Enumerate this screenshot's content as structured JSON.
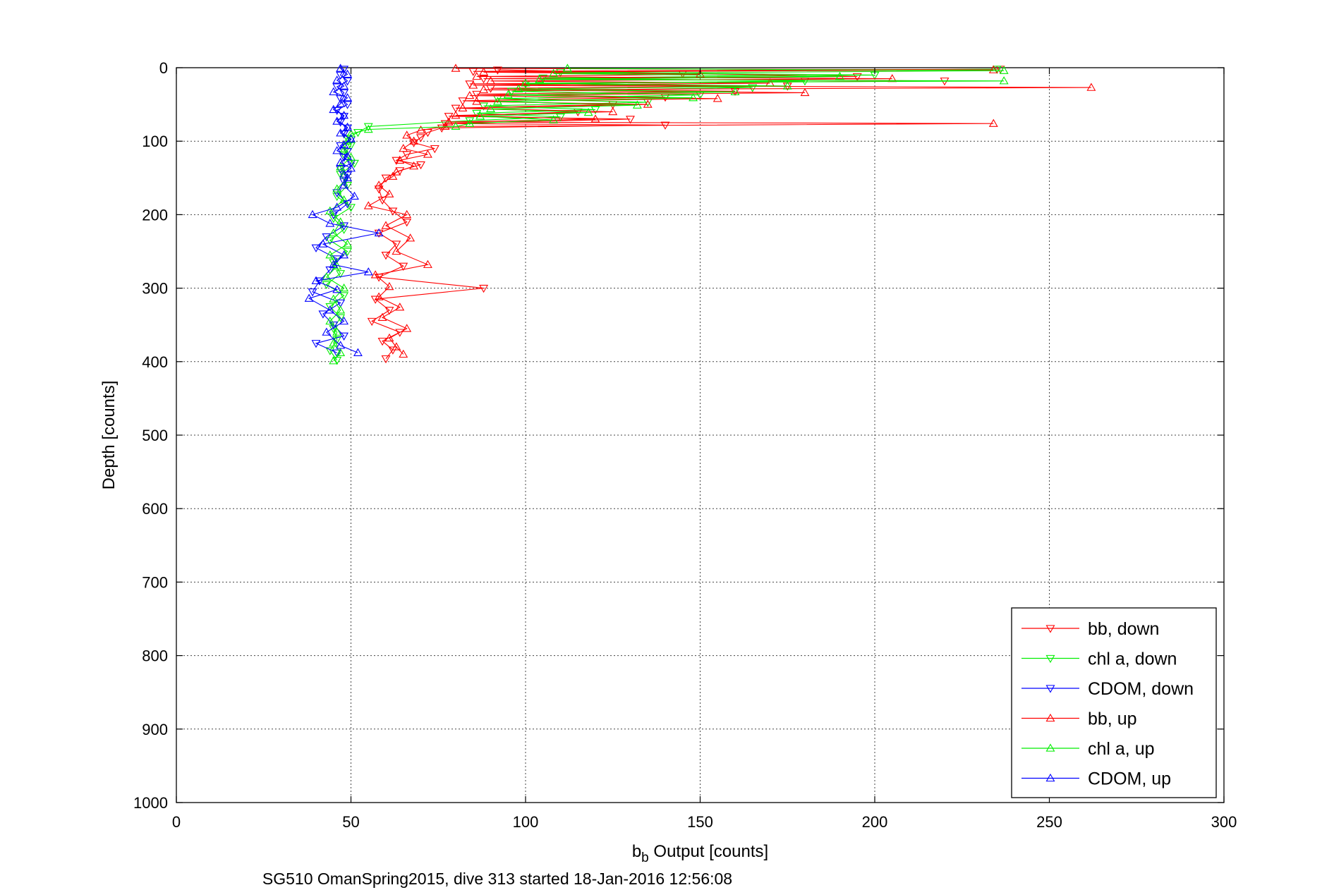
{
  "chart_data": {
    "type": "line",
    "title": "",
    "xlabel_main": "b",
    "xlabel_sub": "b",
    "xlabel_rest": " Output [counts]",
    "ylabel": "Depth [counts]",
    "caption": "SG510 OmanSpring2015, dive 313 started 18-Jan-2016 12:56:08",
    "xlim": [
      0,
      300
    ],
    "ylim": [
      0,
      1000
    ],
    "y_reversed": true,
    "grid": true,
    "xticks": [
      "0",
      "50",
      "100",
      "150",
      "200",
      "250",
      "300"
    ],
    "yticks": [
      "0",
      "100",
      "200",
      "300",
      "400",
      "500",
      "600",
      "700",
      "800",
      "900",
      "1000"
    ],
    "legend_position": "bottom-right",
    "series": [
      {
        "name": "bb, down",
        "color": "#ff0000",
        "marker": "triangle-down",
        "points": [
          [
            236,
            2
          ],
          [
            85,
            5
          ],
          [
            145,
            8
          ],
          [
            92,
            3
          ],
          [
            195,
            12
          ],
          [
            88,
            15
          ],
          [
            220,
            18
          ],
          [
            84,
            22
          ],
          [
            175,
            25
          ],
          [
            90,
            28
          ],
          [
            160,
            32
          ],
          [
            86,
            36
          ],
          [
            140,
            40
          ],
          [
            82,
            45
          ],
          [
            125,
            50
          ],
          [
            80,
            55
          ],
          [
            115,
            60
          ],
          [
            78,
            66
          ],
          [
            130,
            70
          ],
          [
            77,
            76
          ],
          [
            140,
            78
          ],
          [
            76,
            82
          ],
          [
            72,
            88
          ],
          [
            70,
            95
          ],
          [
            68,
            102
          ],
          [
            74,
            110
          ],
          [
            66,
            118
          ],
          [
            63,
            126
          ],
          [
            70,
            132
          ],
          [
            64,
            140
          ],
          [
            60,
            150
          ],
          [
            58,
            165
          ],
          [
            59,
            180
          ],
          [
            62,
            195
          ],
          [
            66,
            210
          ],
          [
            58,
            225
          ],
          [
            63,
            240
          ],
          [
            60,
            255
          ],
          [
            65,
            270
          ],
          [
            58,
            285
          ],
          [
            88,
            300
          ],
          [
            57,
            315
          ],
          [
            61,
            330
          ],
          [
            56,
            345
          ],
          [
            64,
            360
          ],
          [
            59,
            372
          ],
          [
            62,
            384
          ],
          [
            60,
            396
          ]
        ]
      },
      {
        "name": "chl a, down",
        "color": "#00ee00",
        "marker": "triangle-down",
        "points": [
          [
            235,
            2
          ],
          [
            110,
            6
          ],
          [
            200,
            10
          ],
          [
            105,
            14
          ],
          [
            180,
            18
          ],
          [
            100,
            22
          ],
          [
            165,
            27
          ],
          [
            96,
            32
          ],
          [
            150,
            37
          ],
          [
            92,
            42
          ],
          [
            135,
            47
          ],
          [
            88,
            52
          ],
          [
            120,
            57
          ],
          [
            86,
            62
          ],
          [
            110,
            67
          ],
          [
            84,
            72
          ],
          [
            55,
            80
          ],
          [
            52,
            88
          ],
          [
            49,
            96
          ],
          [
            50,
            106
          ],
          [
            48,
            118
          ],
          [
            51,
            130
          ],
          [
            47,
            145
          ],
          [
            49,
            160
          ],
          [
            46,
            175
          ],
          [
            50,
            190
          ],
          [
            45,
            205
          ],
          [
            48,
            220
          ],
          [
            44,
            235
          ],
          [
            49,
            250
          ],
          [
            45,
            265
          ],
          [
            47,
            280
          ],
          [
            43,
            295
          ],
          [
            48,
            310
          ],
          [
            44,
            325
          ],
          [
            47,
            340
          ],
          [
            45,
            355
          ],
          [
            46,
            370
          ],
          [
            44,
            385
          ],
          [
            46,
            398
          ]
        ]
      },
      {
        "name": "CDOM, down",
        "color": "#0000ff",
        "marker": "triangle-down",
        "points": [
          [
            48,
            2
          ],
          [
            47,
            10
          ],
          [
            49,
            18
          ],
          [
            46,
            26
          ],
          [
            48,
            34
          ],
          [
            47,
            42
          ],
          [
            49,
            50
          ],
          [
            46,
            58
          ],
          [
            48,
            66
          ],
          [
            47,
            74
          ],
          [
            49,
            82
          ],
          [
            48,
            90
          ],
          [
            50,
            98
          ],
          [
            47,
            106
          ],
          [
            49,
            114
          ],
          [
            48,
            122
          ],
          [
            50,
            130
          ],
          [
            47,
            138
          ],
          [
            49,
            146
          ],
          [
            48,
            155
          ],
          [
            46,
            170
          ],
          [
            49,
            185
          ],
          [
            45,
            200
          ],
          [
            48,
            215
          ],
          [
            43,
            230
          ],
          [
            40,
            245
          ],
          [
            46,
            260
          ],
          [
            44,
            275
          ],
          [
            41,
            290
          ],
          [
            39,
            305
          ],
          [
            47,
            320
          ],
          [
            42,
            335
          ],
          [
            45,
            350
          ],
          [
            48,
            365
          ],
          [
            40,
            375
          ],
          [
            46,
            388
          ]
        ]
      },
      {
        "name": "bb, up",
        "color": "#ff0000",
        "marker": "triangle-up",
        "points": [
          [
            80,
            1
          ],
          [
            234,
            3
          ],
          [
            88,
            6
          ],
          [
            150,
            9
          ],
          [
            86,
            12
          ],
          [
            205,
            15
          ],
          [
            90,
            18
          ],
          [
            170,
            21
          ],
          [
            85,
            24
          ],
          [
            262,
            27
          ],
          [
            88,
            30
          ],
          [
            180,
            34
          ],
          [
            84,
            38
          ],
          [
            155,
            42
          ],
          [
            86,
            46
          ],
          [
            135,
            50
          ],
          [
            82,
            55
          ],
          [
            125,
            60
          ],
          [
            80,
            65
          ],
          [
            120,
            70
          ],
          [
            78,
            74
          ],
          [
            234,
            76
          ],
          [
            77,
            80
          ],
          [
            70,
            85
          ],
          [
            66,
            92
          ],
          [
            68,
            100
          ],
          [
            65,
            110
          ],
          [
            72,
            118
          ],
          [
            64,
            126
          ],
          [
            68,
            134
          ],
          [
            63,
            142
          ],
          [
            62,
            148
          ],
          [
            58,
            160
          ],
          [
            61,
            172
          ],
          [
            55,
            188
          ],
          [
            66,
            200
          ],
          [
            60,
            215
          ],
          [
            67,
            232
          ],
          [
            63,
            250
          ],
          [
            72,
            268
          ],
          [
            57,
            282
          ],
          [
            61,
            298
          ],
          [
            58,
            312
          ],
          [
            64,
            326
          ],
          [
            59,
            340
          ],
          [
            66,
            355
          ],
          [
            61,
            368
          ],
          [
            63,
            380
          ],
          [
            65,
            390
          ]
        ]
      },
      {
        "name": "chl a, up",
        "color": "#00ee00",
        "marker": "triangle-up",
        "points": [
          [
            112,
            1
          ],
          [
            237,
            4
          ],
          [
            108,
            8
          ],
          [
            190,
            12
          ],
          [
            104,
            16
          ],
          [
            237,
            18
          ],
          [
            100,
            21
          ],
          [
            175,
            25
          ],
          [
            98,
            29
          ],
          [
            160,
            33
          ],
          [
            95,
            37
          ],
          [
            148,
            41
          ],
          [
            92,
            46
          ],
          [
            132,
            51
          ],
          [
            90,
            56
          ],
          [
            118,
            61
          ],
          [
            87,
            66
          ],
          [
            108,
            71
          ],
          [
            84,
            76
          ],
          [
            80,
            80
          ],
          [
            55,
            84
          ],
          [
            50,
            90
          ],
          [
            49,
            100
          ],
          [
            48,
            112
          ],
          [
            50,
            122
          ],
          [
            47,
            135
          ],
          [
            49,
            150
          ],
          [
            46,
            165
          ],
          [
            48,
            180
          ],
          [
            44,
            195
          ],
          [
            47,
            210
          ],
          [
            45,
            225
          ],
          [
            49,
            240
          ],
          [
            44,
            255
          ],
          [
            46,
            270
          ],
          [
            43,
            285
          ],
          [
            48,
            300
          ],
          [
            45,
            315
          ],
          [
            47,
            330
          ],
          [
            44,
            345
          ],
          [
            46,
            360
          ],
          [
            45,
            375
          ],
          [
            47,
            388
          ],
          [
            45,
            399
          ]
        ]
      },
      {
        "name": "CDOM, up",
        "color": "#0000ff",
        "marker": "triangle-up",
        "points": [
          [
            47,
            1
          ],
          [
            49,
            9
          ],
          [
            46,
            17
          ],
          [
            48,
            25
          ],
          [
            45,
            33
          ],
          [
            49,
            41
          ],
          [
            47,
            49
          ],
          [
            45,
            57
          ],
          [
            48,
            65
          ],
          [
            46,
            73
          ],
          [
            49,
            81
          ],
          [
            47,
            89
          ],
          [
            50,
            97
          ],
          [
            48,
            105
          ],
          [
            46,
            113
          ],
          [
            49,
            121
          ],
          [
            47,
            129
          ],
          [
            50,
            137
          ],
          [
            48,
            145
          ],
          [
            49,
            150
          ],
          [
            48,
            160
          ],
          [
            51,
            175
          ],
          [
            46,
            190
          ],
          [
            39,
            200
          ],
          [
            44,
            212
          ],
          [
            58,
            225
          ],
          [
            42,
            240
          ],
          [
            48,
            255
          ],
          [
            45,
            268
          ],
          [
            55,
            278
          ],
          [
            40,
            290
          ],
          [
            46,
            302
          ],
          [
            38,
            314
          ],
          [
            44,
            330
          ],
          [
            48,
            345
          ],
          [
            43,
            360
          ],
          [
            47,
            378
          ],
          [
            52,
            388
          ]
        ]
      }
    ]
  }
}
